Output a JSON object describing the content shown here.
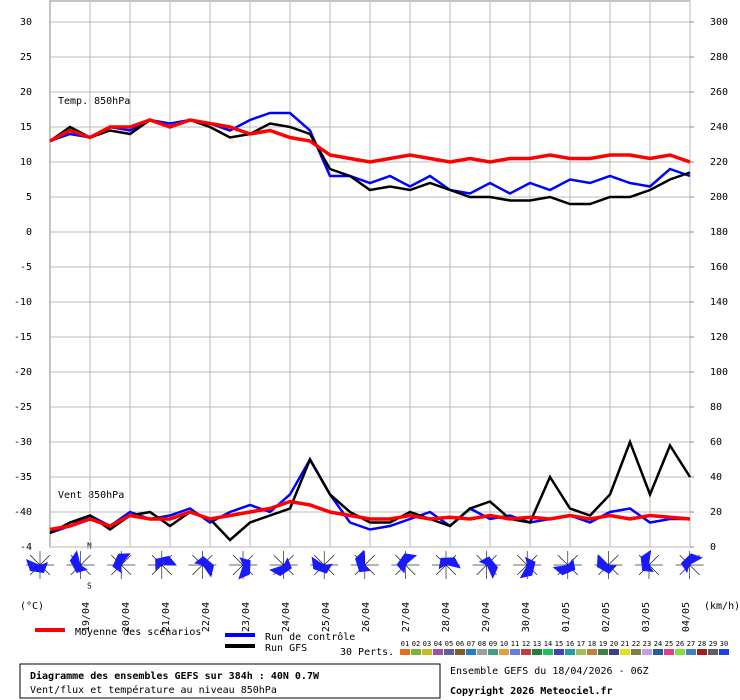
{
  "chart_data": {
    "type": "line",
    "title": "Diagramme des ensembles GEFS sur 384h : 40N 0.7W",
    "subtitle": "Vent/flux et température au niveau 850hPa",
    "run_info": "Ensemble GEFS du 18/04/2026 - 06Z",
    "copyright": "Copyright 2026 Meteociel.fr",
    "y_unit": "(°C)",
    "y2_unit": "(km/h)",
    "annotations": [
      "Temp. 850hPa",
      "Vent 850hPa",
      "N",
      "S"
    ],
    "perturbations_label": "30 Perts.",
    "perturbations": [
      {
        "name": "01",
        "color": "#e07020"
      },
      {
        "name": "02",
        "color": "#80b040"
      },
      {
        "name": "03",
        "color": "#c0c020"
      },
      {
        "name": "04",
        "color": "#a050a0"
      },
      {
        "name": "05",
        "color": "#6060a0"
      },
      {
        "name": "06",
        "color": "#806020"
      },
      {
        "name": "07",
        "color": "#2080c0"
      },
      {
        "name": "08",
        "color": "#a0a0a0"
      },
      {
        "name": "09",
        "color": "#40a080"
      },
      {
        "name": "10",
        "color": "#e0a040"
      },
      {
        "name": "11",
        "color": "#6080e0"
      },
      {
        "name": "12",
        "color": "#c04040"
      },
      {
        "name": "13",
        "color": "#208040"
      },
      {
        "name": "14",
        "color": "#20c060"
      },
      {
        "name": "15",
        "color": "#4040c0"
      },
      {
        "name": "16",
        "color": "#20a0a0"
      },
      {
        "name": "17",
        "color": "#a0c060"
      },
      {
        "name": "18",
        "color": "#c08040"
      },
      {
        "name": "19",
        "color": "#408040"
      },
      {
        "name": "20",
        "color": "#404080"
      },
      {
        "name": "21",
        "color": "#e0e020"
      },
      {
        "name": "22",
        "color": "#808040"
      },
      {
        "name": "23",
        "color": "#c0a0e0"
      },
      {
        "name": "24",
        "color": "#2060a0"
      },
      {
        "name": "25",
        "color": "#e04080"
      },
      {
        "name": "26",
        "color": "#80e040"
      },
      {
        "name": "27",
        "color": "#4080c0"
      },
      {
        "name": "28",
        "color": "#a02020"
      },
      {
        "name": "29",
        "color": "#606060"
      },
      {
        "name": "30",
        "color": "#2040e0"
      }
    ],
    "x": [
      0,
      12,
      24,
      36,
      48,
      60,
      72,
      84,
      96,
      108,
      120,
      132,
      144,
      156,
      168,
      180,
      192,
      204,
      216,
      228,
      240,
      252,
      264,
      276,
      288,
      300,
      312,
      324,
      336,
      348,
      360,
      372,
      384
    ],
    "xlim": [
      0,
      384
    ],
    "xticks": [
      {
        "value": 24,
        "label": "19/04"
      },
      {
        "value": 48,
        "label": "20/04"
      },
      {
        "value": 72,
        "label": "21/04"
      },
      {
        "value": 96,
        "label": "22/04"
      },
      {
        "value": 120,
        "label": "23/04"
      },
      {
        "value": 144,
        "label": "24/04"
      },
      {
        "value": 168,
        "label": "25/04"
      },
      {
        "value": 192,
        "label": "26/04"
      },
      {
        "value": 216,
        "label": "27/04"
      },
      {
        "value": 240,
        "label": "28/04"
      },
      {
        "value": 264,
        "label": "29/04"
      },
      {
        "value": 288,
        "label": "30/04"
      },
      {
        "value": 312,
        "label": "01/05"
      },
      {
        "value": 336,
        "label": "02/05"
      },
      {
        "value": 360,
        "label": "03/05"
      },
      {
        "value": 384,
        "label": "04/05"
      }
    ],
    "ylim": [
      -45,
      33
    ],
    "yticks": [
      30,
      25,
      20,
      15,
      10,
      5,
      0,
      -5,
      -10,
      -15,
      -20,
      -25,
      -30,
      -35,
      -40,
      {
        "value": -45,
        "label": "-4"
      }
    ],
    "y2lim": [
      0,
      312
    ],
    "y2ticks": [
      300,
      280,
      260,
      240,
      220,
      200,
      180,
      160,
      140,
      120,
      100,
      80,
      60,
      40,
      20,
      0
    ],
    "grid": true,
    "series": [
      {
        "name": "Moyenne des scénarios",
        "color": "#ff0000",
        "values": [
          13,
          14.5,
          13.5,
          15,
          15,
          16,
          15,
          16,
          15.5,
          15,
          14,
          14.5,
          13.5,
          13,
          11,
          10.5,
          10,
          10.5,
          11,
          10.5,
          10,
          10.5,
          10,
          10.5,
          10.5,
          11,
          10.5,
          10.5,
          11,
          11,
          10.5,
          11,
          10
        ]
      },
      {
        "name": "Run de contrôle",
        "color": "#0000ff",
        "values": [
          13,
          14,
          13.5,
          15,
          14.5,
          16,
          15.5,
          16,
          15.5,
          14.5,
          16,
          17,
          17,
          14.5,
          8,
          8,
          7,
          8,
          6.5,
          8,
          6,
          5.5,
          7,
          5.5,
          7,
          6,
          7.5,
          7,
          8,
          7,
          6.5,
          9,
          8
        ]
      },
      {
        "name": "Run GFS",
        "color": "#000000",
        "values": [
          13,
          15,
          13.5,
          14.5,
          14,
          16,
          15,
          16,
          15,
          13.5,
          14,
          15.5,
          15,
          14,
          9,
          8,
          6,
          6.5,
          6,
          7,
          6,
          5,
          5,
          4.5,
          4.5,
          5,
          4,
          4,
          5,
          5,
          6,
          7.5,
          8.5
        ]
      },
      {
        "name": "Moyenne des scénarios",
        "color": "#ff0000",
        "axis": "y2",
        "values": [
          10,
          12,
          16,
          12,
          18,
          16,
          16,
          20,
          16,
          18,
          20,
          22,
          26,
          24,
          20,
          18,
          16,
          16,
          18,
          16,
          17,
          16,
          18,
          16,
          17,
          16,
          18,
          16,
          18,
          16,
          18,
          17,
          16
        ]
      },
      {
        "name": "Run de contrôle",
        "color": "#0000ff",
        "axis": "y2",
        "values": [
          8,
          12,
          18,
          12,
          20,
          16,
          18,
          22,
          14,
          20,
          24,
          20,
          30,
          50,
          30,
          14,
          10,
          12,
          16,
          20,
          12,
          22,
          16,
          18,
          14,
          16,
          18,
          14,
          20,
          22,
          14,
          16,
          16
        ]
      },
      {
        "name": "Run GFS",
        "color": "#000000",
        "axis": "y2",
        "values": [
          8,
          14,
          18,
          10,
          18,
          20,
          12,
          20,
          16,
          4,
          14,
          18,
          22,
          50,
          30,
          20,
          14,
          14,
          20,
          16,
          12,
          22,
          26,
          16,
          14,
          40,
          22,
          18,
          30,
          60,
          30,
          58,
          40
        ]
      }
    ]
  }
}
